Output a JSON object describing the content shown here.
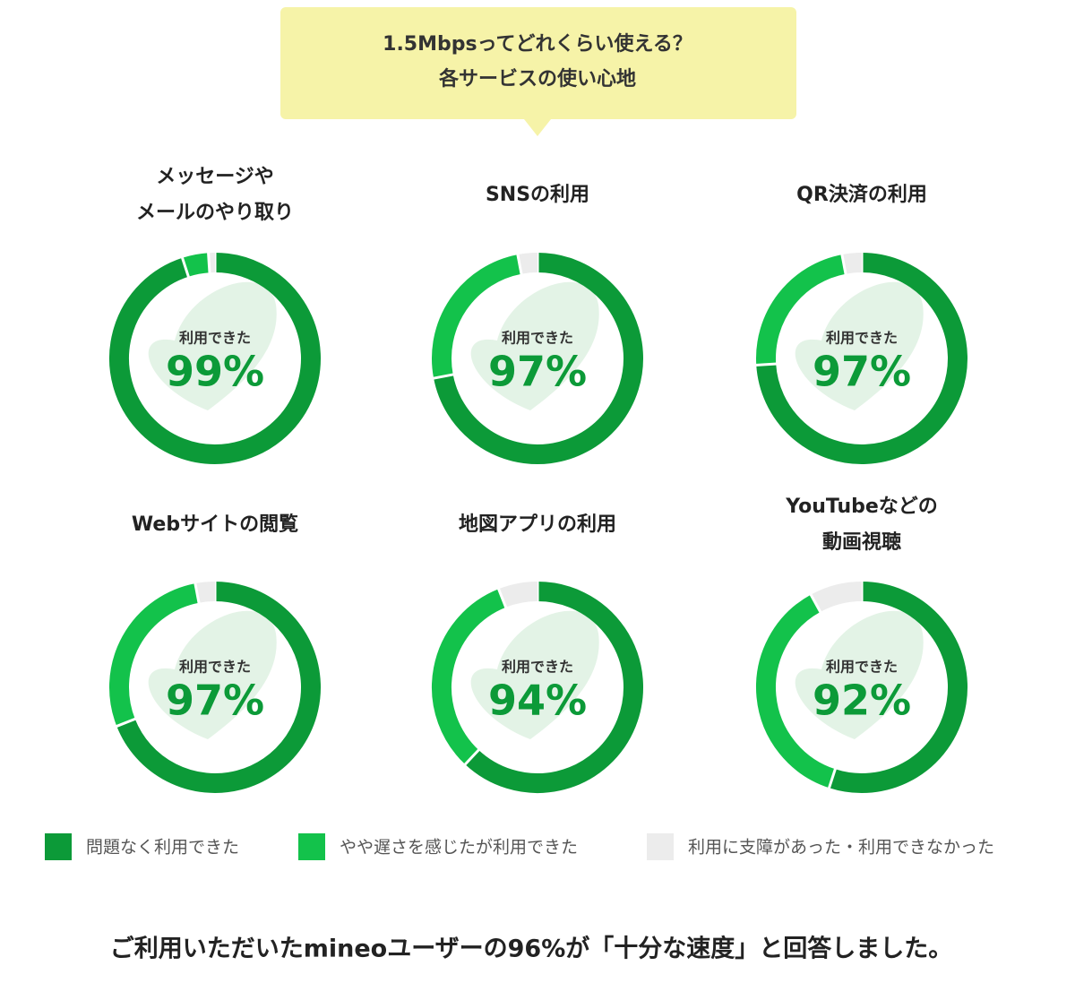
{
  "header": {
    "lines": [
      "1.5Mbpsってどれくらい使える？",
      "各サービスの使い心地"
    ]
  },
  "legend": [
    {
      "name": "問題なく利用できた",
      "color": "#0c9a38"
    },
    {
      "name": "やや遅さを感じたが利用できた",
      "color": "#13c24b"
    },
    {
      "name": "利用に支障があった・利用できなかった",
      "color": "#ececec"
    }
  ],
  "chart_data": [
    {
      "type": "donut",
      "title": [
        "メッセージや",
        "メールのやり取り"
      ],
      "values": [
        95,
        4,
        1
      ],
      "summary": {
        "label": "利用できた",
        "value": 99,
        "value_label": "99%"
      }
    },
    {
      "type": "donut",
      "title": [
        "SNSの利用"
      ],
      "values": [
        72,
        25,
        3
      ],
      "summary": {
        "label": "利用できた",
        "value": 97,
        "value_label": "97%"
      }
    },
    {
      "type": "donut",
      "title": [
        "QR決済の利用"
      ],
      "values": [
        74,
        23,
        3
      ],
      "summary": {
        "label": "利用できた",
        "value": 97,
        "value_label": "97%"
      }
    },
    {
      "type": "donut",
      "title": [
        "Webサイトの閲覧"
      ],
      "values": [
        69,
        28,
        3
      ],
      "summary": {
        "label": "利用できた",
        "value": 97,
        "value_label": "97%"
      }
    },
    {
      "type": "donut",
      "title": [
        "地図アプリの利用"
      ],
      "values": [
        62,
        32,
        6
      ],
      "summary": {
        "label": "利用できた",
        "value": 94,
        "value_label": "94%"
      }
    },
    {
      "type": "donut",
      "title": [
        "YouTubeなどの",
        "動画視聴"
      ],
      "values": [
        55,
        37,
        8
      ],
      "summary": {
        "label": "利用できた",
        "value": 92,
        "value_label": "92%"
      }
    }
  ],
  "footer": "ご利用いただいたmineoユーザーの96%が「十分な速度」と回答しました。"
}
